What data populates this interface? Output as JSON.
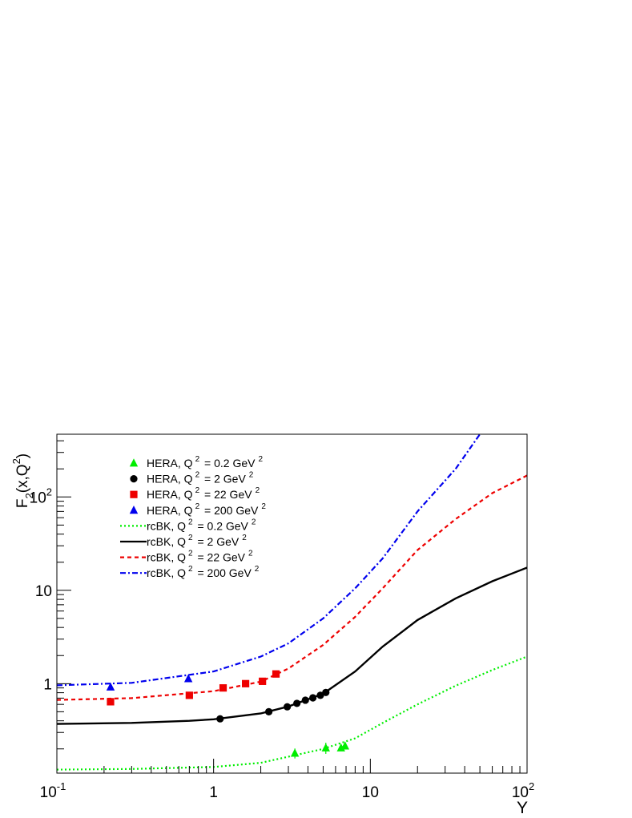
{
  "chart_data": {
    "type": "scatter",
    "x_scale": "log",
    "y_scale": "log",
    "xlim": [
      0.1,
      100
    ],
    "ylim": [
      0.11,
      470
    ],
    "x_ticks": [
      {
        "value": 0.1,
        "base": "10",
        "exp": "-1"
      },
      {
        "value": 1,
        "base": "1",
        "exp": ""
      },
      {
        "value": 10,
        "base": "10",
        "exp": ""
      },
      {
        "value": 100,
        "base": "10",
        "exp": "2"
      }
    ],
    "y_ticks": [
      {
        "value": 1,
        "base": "1",
        "exp": ""
      },
      {
        "value": 10,
        "base": "10",
        "exp": ""
      },
      {
        "value": 100,
        "base": "10",
        "exp": "2"
      }
    ],
    "xlabel": "Y",
    "ylabel": {
      "main": "F",
      "sub": "2",
      "paren": "(x,Q",
      "sup": "2",
      "close": ")"
    },
    "legend_position": "top-left",
    "data_series": [
      {
        "name_pre": "HERA, Q",
        "name_sup": "2",
        "name_mid": " = 0.2 GeV",
        "name_sup2": "2",
        "color": "#00ee00",
        "marker": "triangle",
        "points": [
          {
            "x": 3.3,
            "y": 0.18,
            "err": 0.022
          },
          {
            "x": 5.2,
            "y": 0.205,
            "err": 0.028
          },
          {
            "x": 6.5,
            "y": 0.205,
            "err": 0.012
          },
          {
            "x": 6.9,
            "y": 0.215,
            "err": 0.01
          }
        ]
      },
      {
        "name_pre": "HERA, Q",
        "name_sup": "2",
        "name_mid": " = 2 GeV",
        "name_sup2": "2",
        "color": "#000000",
        "marker": "circle",
        "points": [
          {
            "x": 1.1,
            "y": 0.42
          },
          {
            "x": 2.25,
            "y": 0.5
          },
          {
            "x": 2.95,
            "y": 0.565
          },
          {
            "x": 3.4,
            "y": 0.615
          },
          {
            "x": 3.85,
            "y": 0.665
          },
          {
            "x": 4.3,
            "y": 0.705
          },
          {
            "x": 4.8,
            "y": 0.75
          },
          {
            "x": 5.2,
            "y": 0.805
          }
        ]
      },
      {
        "name_pre": "HERA, Q",
        "name_sup": "2",
        "name_mid": " = 22 GeV",
        "name_sup2": "2",
        "color": "#ee0000",
        "marker": "square",
        "points": [
          {
            "x": 0.22,
            "y": 0.64
          },
          {
            "x": 0.7,
            "y": 0.75
          },
          {
            "x": 1.15,
            "y": 0.9
          },
          {
            "x": 1.6,
            "y": 1.0
          },
          {
            "x": 2.05,
            "y": 1.06
          },
          {
            "x": 2.5,
            "y": 1.27
          }
        ]
      },
      {
        "name_pre": "HERA, Q",
        "name_sup": "2",
        "name_mid": " = 200 GeV",
        "name_sup2": "2",
        "color": "#0000ee",
        "marker": "triangle",
        "points": [
          {
            "x": 0.22,
            "y": 0.92
          },
          {
            "x": 0.69,
            "y": 1.13
          }
        ]
      }
    ],
    "curve_series": [
      {
        "name_pre": "rcBK, Q",
        "name_sup": "2",
        "name_mid": " = 0.2 GeV",
        "name_sup2": "2",
        "color": "#00ee00",
        "dash": "2,3",
        "points": [
          [
            0.1,
            0.12
          ],
          [
            0.3,
            0.122
          ],
          [
            1,
            0.128
          ],
          [
            2,
            0.142
          ],
          [
            3,
            0.165
          ],
          [
            5,
            0.2
          ],
          [
            8,
            0.26
          ],
          [
            12,
            0.38
          ],
          [
            20,
            0.6
          ],
          [
            35,
            0.95
          ],
          [
            60,
            1.4
          ],
          [
            100,
            1.95
          ]
        ]
      },
      {
        "name_pre": "rcBK, Q",
        "name_sup": "2",
        "name_mid": " = 2 GeV",
        "name_sup2": "2",
        "color": "#000000",
        "dash": "",
        "points": [
          [
            0.1,
            0.37
          ],
          [
            0.3,
            0.38
          ],
          [
            0.7,
            0.4
          ],
          [
            1,
            0.415
          ],
          [
            2,
            0.48
          ],
          [
            3,
            0.57
          ],
          [
            5,
            0.78
          ],
          [
            8,
            1.35
          ],
          [
            12,
            2.5
          ],
          [
            20,
            4.8
          ],
          [
            35,
            8.2
          ],
          [
            60,
            12.5
          ],
          [
            100,
            17.5
          ]
        ]
      },
      {
        "name_pre": "rcBK, Q",
        "name_sup": "2",
        "name_mid": " = 22 GeV",
        "name_sup2": "2",
        "color": "#ee0000",
        "dash": "5,4",
        "points": [
          [
            0.1,
            0.67
          ],
          [
            0.3,
            0.7
          ],
          [
            1,
            0.83
          ],
          [
            2,
            1.05
          ],
          [
            3,
            1.45
          ],
          [
            5,
            2.6
          ],
          [
            8,
            5.2
          ],
          [
            12,
            10.5
          ],
          [
            20,
            27
          ],
          [
            35,
            58
          ],
          [
            60,
            110
          ],
          [
            100,
            170
          ]
        ]
      },
      {
        "name_pre": "rcBK, Q",
        "name_sup": "2",
        "name_mid": " = 200 GeV",
        "name_sup2": "2",
        "color": "#0000ee",
        "dash": "7,3,2,3",
        "points": [
          [
            0.1,
            0.96
          ],
          [
            0.3,
            1.02
          ],
          [
            1,
            1.35
          ],
          [
            2,
            1.95
          ],
          [
            3,
            2.7
          ],
          [
            5,
            5.0
          ],
          [
            8,
            10.5
          ],
          [
            12,
            22
          ],
          [
            20,
            70
          ],
          [
            35,
            200
          ],
          [
            50,
            470
          ]
        ]
      }
    ]
  }
}
